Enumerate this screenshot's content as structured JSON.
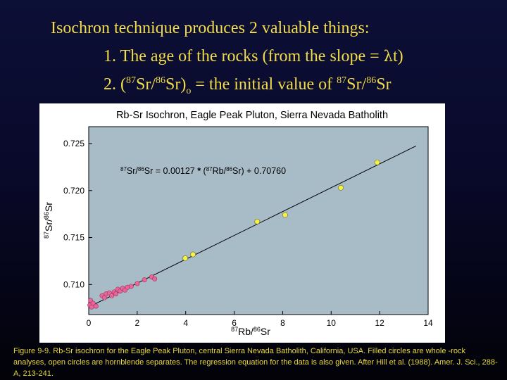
{
  "slide": {
    "title": "Isochron technique produces 2 valuable things:",
    "item1": {
      "prefix": "1. The age of the rocks (from the slope = ",
      "symbol": "λ",
      "suffix": "t)"
    },
    "item2": {
      "num": "2.  (",
      "sup1": "87",
      "t1": "Sr/",
      "sup2": "86",
      "t2": "Sr)",
      "sub": "o",
      "t3": " = the initial value of ",
      "sup3": "87",
      "t4": "Sr/",
      "sup4": "86",
      "t5": "Sr"
    }
  },
  "chart_data": {
    "type": "scatter",
    "title": "Rb-Sr Isochron, Eagle Peak Pluton, Sierra Nevada Batholith",
    "xlabel": "87Rb/86Sr",
    "ylabel": "87Sr/86Sr",
    "xlim": [
      0,
      14
    ],
    "ylim": [
      0.7068,
      0.7268
    ],
    "xticks": [
      0,
      2,
      4,
      6,
      8,
      10,
      12,
      14
    ],
    "yticks": [
      0.71,
      0.715,
      0.72,
      0.725
    ],
    "ytick_labels": [
      "0.710",
      "0.715",
      "0.720",
      "0.725"
    ],
    "grid": false,
    "background": "#a8bcc8",
    "equation": {
      "lhs_sup1": "87",
      "lhs_t1": "Sr/",
      "lhs_sup2": "86",
      "lhs_t2": "Sr = 0.00127 ",
      "star": "*",
      "rhs_t0": " (",
      "rhs_sup1": "87",
      "rhs_t1": "Rb/",
      "rhs_sup2": "86",
      "rhs_t2": "Sr) + 0.70760"
    },
    "regression": {
      "slope": 0.00127,
      "intercept": 0.7076,
      "x_range": [
        0,
        13.5
      ]
    },
    "series": [
      {
        "marker": "pink",
        "color": "#e8679a",
        "points": [
          [
            0.05,
            0.7078
          ],
          [
            0.08,
            0.7083
          ],
          [
            0.12,
            0.7076
          ],
          [
            0.18,
            0.708
          ],
          [
            0.3,
            0.7077
          ],
          [
            0.55,
            0.7088
          ],
          [
            0.65,
            0.7086
          ],
          [
            0.72,
            0.709
          ],
          [
            0.85,
            0.7091
          ],
          [
            0.95,
            0.7088
          ],
          [
            1.05,
            0.7092
          ],
          [
            1.12,
            0.709
          ],
          [
            1.2,
            0.7095
          ],
          [
            1.3,
            0.7093
          ],
          [
            1.4,
            0.7096
          ],
          [
            1.5,
            0.7094
          ],
          [
            1.6,
            0.7097
          ],
          [
            1.75,
            0.7098
          ],
          [
            2.0,
            0.7101
          ],
          [
            2.3,
            0.7105
          ],
          [
            2.6,
            0.7108
          ],
          [
            2.72,
            0.7106
          ]
        ]
      },
      {
        "marker": "yellow",
        "color": "#f4f24a",
        "points": [
          [
            3.98,
            0.7128
          ],
          [
            4.3,
            0.7132
          ],
          [
            6.95,
            0.7167
          ],
          [
            8.1,
            0.7174
          ],
          [
            10.4,
            0.7203
          ],
          [
            11.9,
            0.723
          ]
        ]
      }
    ]
  },
  "caption": "Figure 9-9. Rb-Sr isochron for the Eagle Peak Pluton, central Sierra Nevada Batholith, California, USA. Filled circles are whole -rock analyses, open circles are hornblende separates. The regression equation for the data is also given. After Hill et al. (1988). Amer. J. Sci., 288-A, 213-241."
}
